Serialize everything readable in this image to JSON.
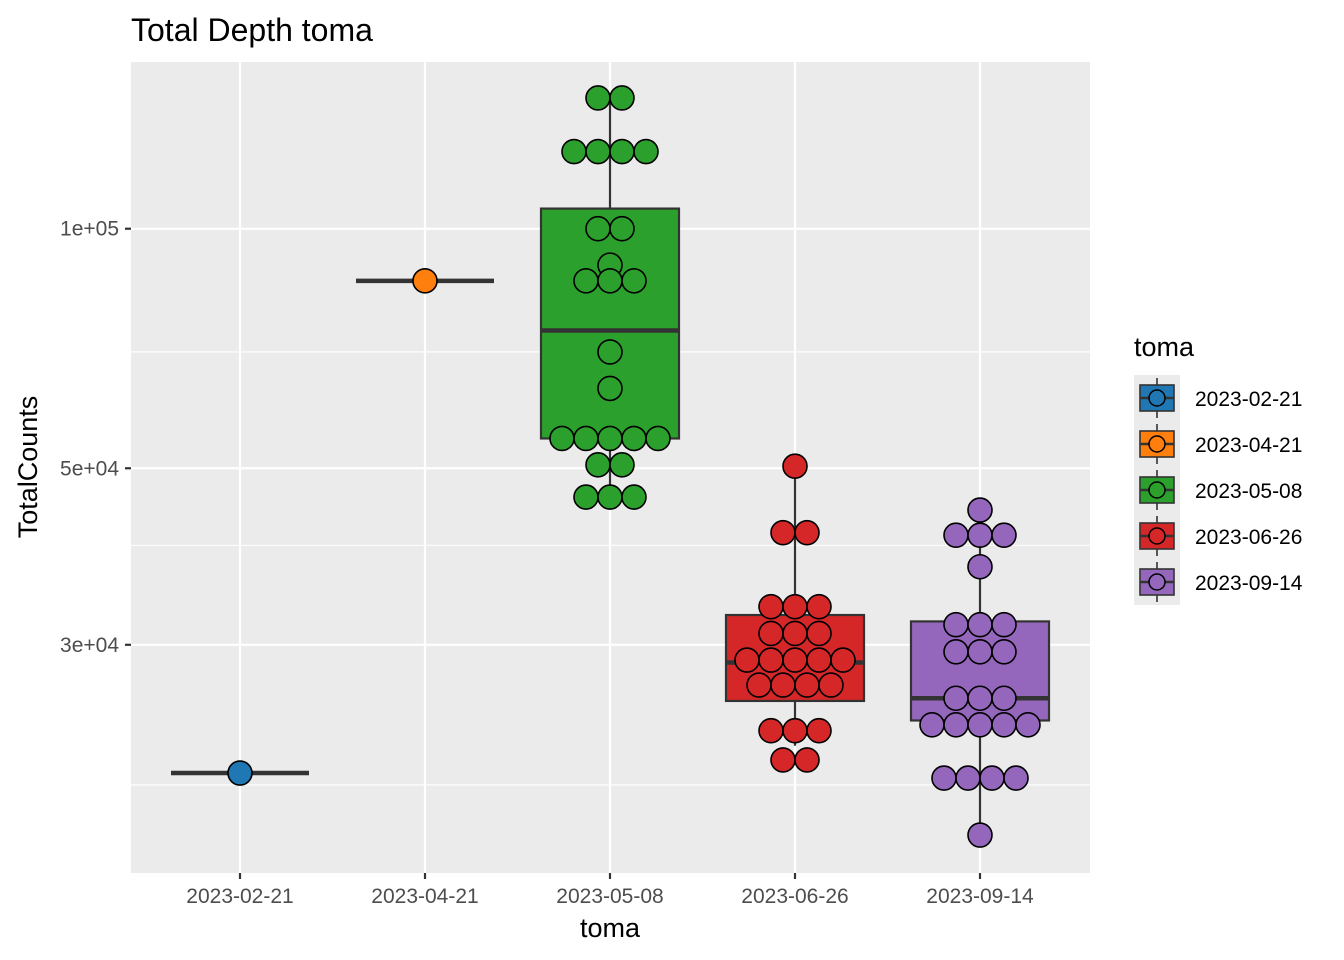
{
  "chart_data": {
    "type": "box",
    "title": "Total Depth toma",
    "xlabel": "toma",
    "ylabel": "TotalCounts",
    "y_scale": "log10",
    "ylim": [
      15500,
      162000
    ],
    "y_ticks": [
      {
        "value": 30000,
        "label": "3e+04"
      },
      {
        "value": 50000,
        "label": "5e+04"
      },
      {
        "value": 100000,
        "label": "1e+05"
      }
    ],
    "y_minor_gridlines": [
      20000,
      40000,
      70000
    ],
    "grid": true,
    "legend": {
      "title": "toma",
      "position": "right",
      "entries": [
        "2023-02-21",
        "2023-04-21",
        "2023-05-08",
        "2023-06-26",
        "2023-09-14"
      ]
    },
    "categories": [
      "2023-02-21",
      "2023-04-21",
      "2023-05-08",
      "2023-06-26",
      "2023-09-14"
    ],
    "series": [
      {
        "name": "2023-02-21",
        "color": "#1f78b4",
        "box": {
          "q1": 20700,
          "median": 20700,
          "q3": 20700,
          "whisker_low": 20700,
          "whisker_high": 20700
        },
        "points": [
          {
            "y": 20700,
            "n": 1
          }
        ]
      },
      {
        "name": "2023-04-21",
        "color": "#ff7f0e",
        "box": {
          "q1": 86000,
          "median": 86000,
          "q3": 86000,
          "whisker_low": 86000,
          "whisker_high": 86000
        },
        "points": [
          {
            "y": 86000,
            "n": 1
          }
        ]
      },
      {
        "name": "2023-05-08",
        "color": "#2ca02c",
        "box": {
          "q1": 54500,
          "median": 74500,
          "q3": 106000,
          "whisker_low": 46000,
          "whisker_high": 146000
        },
        "points": [
          {
            "y": 146000,
            "n": 2
          },
          {
            "y": 125000,
            "n": 4
          },
          {
            "y": 100000,
            "n": 2
          },
          {
            "y": 90000,
            "n": 1
          },
          {
            "y": 86000,
            "n": 3
          },
          {
            "y": 70000,
            "n": 1
          },
          {
            "y": 63000,
            "n": 1
          },
          {
            "y": 54500,
            "n": 5
          },
          {
            "y": 50500,
            "n": 2
          },
          {
            "y": 46000,
            "n": 3
          }
        ]
      },
      {
        "name": "2023-06-26",
        "color": "#d62728",
        "box": {
          "q1": 25500,
          "median": 28500,
          "q3": 32700,
          "whisker_low": 22400,
          "whisker_high": 50300
        },
        "points": [
          {
            "y": 50300,
            "n": 1
          },
          {
            "y": 41500,
            "n": 2
          },
          {
            "y": 33500,
            "n": 3
          },
          {
            "y": 31000,
            "n": 3
          },
          {
            "y": 28700,
            "n": 5
          },
          {
            "y": 26700,
            "n": 4
          },
          {
            "y": 23400,
            "n": 3
          },
          {
            "y": 21500,
            "n": 2
          }
        ]
      },
      {
        "name": "2023-09-14",
        "color": "#9467bd",
        "box": {
          "q1": 24100,
          "median": 25700,
          "q3": 32100,
          "whisker_low": 17300,
          "whisker_high": 44300
        },
        "points": [
          {
            "y": 44300,
            "n": 1
          },
          {
            "y": 41200,
            "n": 3
          },
          {
            "y": 37600,
            "n": 1
          },
          {
            "y": 31800,
            "n": 3
          },
          {
            "y": 29400,
            "n": 3
          },
          {
            "y": 25700,
            "n": 3
          },
          {
            "y": 23800,
            "n": 5
          },
          {
            "y": 20400,
            "n": 4
          },
          {
            "y": 17300,
            "n": 1
          }
        ]
      }
    ]
  }
}
